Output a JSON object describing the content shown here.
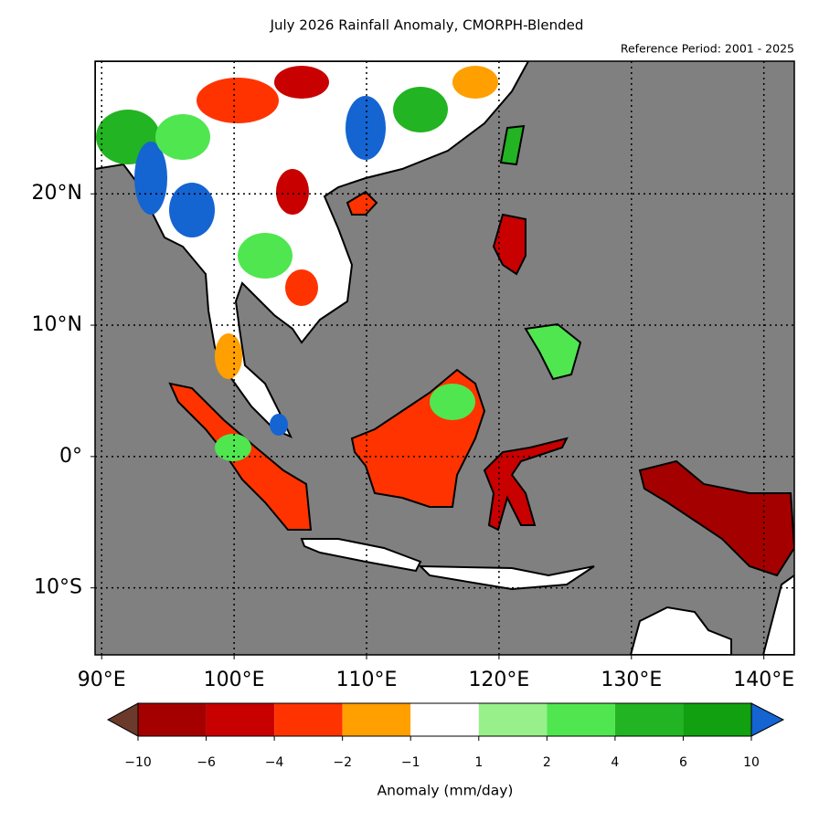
{
  "title": "July 2026 Rainfall Anomaly, CMORPH-Blended",
  "subtitle": "Reference Period: 2001 - 2025",
  "map": {
    "lonlim": [
      89.5,
      142.3
    ],
    "latlim": [
      -15.1,
      30.1
    ],
    "lon_ticks": [
      {
        "value": 90,
        "label": "90°E"
      },
      {
        "value": 100,
        "label": "100°E"
      },
      {
        "value": 110,
        "label": "110°E"
      },
      {
        "value": 120,
        "label": "120°E"
      },
      {
        "value": 130,
        "label": "130°E"
      },
      {
        "value": 140,
        "label": "140°E"
      }
    ],
    "lat_ticks": [
      {
        "value": 20,
        "label": "20°N"
      },
      {
        "value": 10,
        "label": "10°N"
      },
      {
        "value": 0,
        "label": "0°"
      },
      {
        "value": -10,
        "label": "10°S"
      }
    ],
    "ocean_color": "#808080"
  },
  "colorbar": {
    "label": "Anomaly (mm/day)",
    "bounds": [
      {
        "value": -10,
        "label": "−10"
      },
      {
        "value": -6,
        "label": "−6"
      },
      {
        "value": -4,
        "label": "−4"
      },
      {
        "value": -2,
        "label": "−2"
      },
      {
        "value": -1,
        "label": "−1"
      },
      1,
      2,
      4,
      6,
      10
    ],
    "under_color": "#6b3a2a",
    "over_color": "#1464d2",
    "colors": [
      "#a50000",
      "#c80000",
      "#ff3300",
      "#ff9f00",
      "#ffffff",
      "#98f08a",
      "#50e650",
      "#22b422",
      "#10a010"
    ]
  }
}
